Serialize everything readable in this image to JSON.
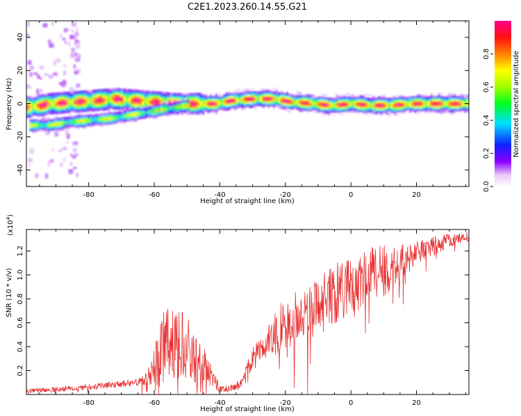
{
  "title": "C2E1.2023.260.14.55.G21",
  "colors": {
    "snr_line": "#e83030",
    "axis": "#000000",
    "background": "#ffffff"
  },
  "chart_data": [
    {
      "type": "heatmap",
      "xlabel": "Height of straight line (km)",
      "ylabel": "Frequency (Hz)",
      "xlim": [
        -99,
        36
      ],
      "ylim": [
        -50,
        50
      ],
      "xticks": [
        -80,
        -60,
        -40,
        -20,
        0,
        20
      ],
      "yticks": [
        -40,
        -20,
        0,
        20,
        40
      ],
      "colorbar": {
        "label": "Normalized spectral amplitude",
        "range": [
          0,
          1
        ],
        "ticks": [
          0.0,
          0.2,
          0.4,
          0.6,
          0.8
        ],
        "colormap": "rainbow (white-violet-blue-cyan-green-yellow-red-magenta)"
      },
      "ridge": {
        "description": "Main spectral ridge (frequency vs height)",
        "points": [
          [
            -98,
            -2
          ],
          [
            -92,
            0
          ],
          [
            -85,
            1
          ],
          [
            -78,
            2
          ],
          [
            -72,
            3
          ],
          [
            -66,
            2
          ],
          [
            -60,
            1
          ],
          [
            -54,
            0
          ],
          [
            -48,
            0
          ],
          [
            -42,
            0
          ],
          [
            -36,
            2
          ],
          [
            -30,
            3
          ],
          [
            -24,
            3
          ],
          [
            -18,
            1
          ],
          [
            -12,
            0
          ],
          [
            -6,
            -1
          ],
          [
            0,
            0
          ],
          [
            6,
            -1
          ],
          [
            12,
            -1
          ],
          [
            18,
            0
          ],
          [
            24,
            0
          ],
          [
            30,
            0
          ],
          [
            35,
            0
          ]
        ]
      },
      "secondary_branch": {
        "description": "Lower spectral branch",
        "points": [
          [
            -98,
            -13
          ],
          [
            -92,
            -13
          ],
          [
            -86,
            -11
          ],
          [
            -80,
            -10
          ],
          [
            -74,
            -9
          ],
          [
            -68,
            -7
          ],
          [
            -62,
            -5
          ],
          [
            -56,
            -3
          ],
          [
            -50,
            -1
          ]
        ]
      }
    },
    {
      "type": "line",
      "xlabel": "Height of straight line (km)",
      "ylabel": "SNR (10 * v/v)",
      "y_multiplier_label": "(x10",
      "y_multiplier_exp": "4",
      "y_multiplier_close": ")",
      "xlim": [
        -99,
        36
      ],
      "ylim": [
        0,
        1.38
      ],
      "xticks": [
        -80,
        -60,
        -40,
        -20,
        0,
        20
      ],
      "yticks": [
        0.2,
        0.4,
        0.6,
        0.8,
        1.0,
        1.2
      ],
      "series": [
        {
          "envelope": {
            "x": [
              -99,
              -90,
              -80,
              -70,
              -62,
              -60,
              -58,
              -55,
              -50,
              -45,
              -42,
              -40,
              -37,
              -34,
              -30,
              -27,
              -24,
              -21,
              -18,
              -15,
              -12,
              -9,
              -6,
              -3,
              0,
              3,
              6,
              9,
              12,
              15,
              18,
              21,
              24,
              27,
              30,
              33,
              36
            ],
            "y": [
              0.03,
              0.04,
              0.06,
              0.09,
              0.11,
              0.2,
              0.38,
              0.45,
              0.38,
              0.25,
              0.12,
              0.05,
              0.05,
              0.08,
              0.3,
              0.38,
              0.48,
              0.58,
              0.62,
              0.68,
              0.7,
              0.75,
              0.82,
              0.88,
              0.92,
              0.95,
              1.0,
              1.03,
              1.05,
              1.1,
              1.15,
              1.2,
              1.23,
              1.26,
              1.29,
              1.31,
              1.32
            ]
          },
          "noise_amplitude": {
            "x": [
              -99,
              -65,
              -62,
              -58,
              -52,
              -46,
              -42,
              -40,
              -36,
              -32,
              -28,
              -20,
              -10,
              0,
              10,
              20,
              36
            ],
            "y": [
              0.02,
              0.03,
              0.1,
              0.3,
              0.3,
              0.2,
              0.08,
              0.03,
              0.03,
              0.06,
              0.12,
              0.22,
              0.25,
              0.25,
              0.22,
              0.1,
              0.04
            ]
          }
        }
      ]
    }
  ]
}
